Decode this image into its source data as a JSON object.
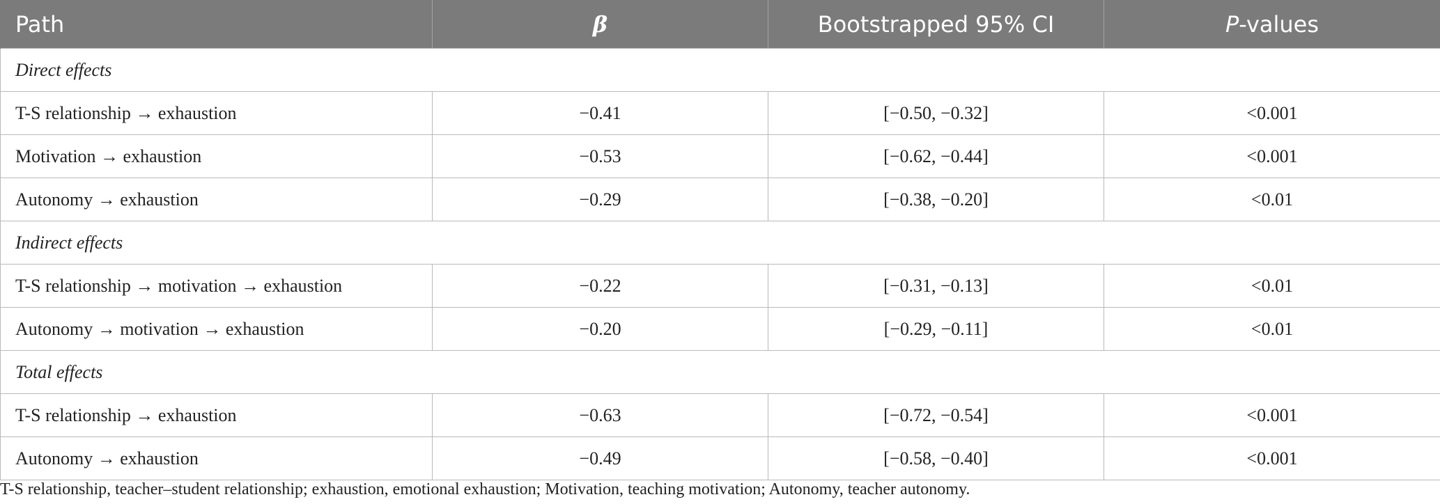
{
  "table": {
    "headers": {
      "path": "Path",
      "beta": "β",
      "ci": "Bootstrapped 95% CI",
      "p_italic": "P",
      "p_rest": "-values"
    },
    "sections": [
      {
        "title": "Direct effects",
        "rows": [
          {
            "path": "T-S relationship → exhaustion",
            "beta": "−0.41",
            "ci": "[−0.50, −0.32]",
            "p": "<0.001"
          },
          {
            "path": "Motivation → exhaustion",
            "beta": "−0.53",
            "ci": "[−0.62, −0.44]",
            "p": "<0.001"
          },
          {
            "path": "Autonomy → exhaustion",
            "beta": "−0.29",
            "ci": "[−0.38, −0.20]",
            "p": "<0.01"
          }
        ]
      },
      {
        "title": "Indirect effects",
        "rows": [
          {
            "path": "T-S relationship → motivation → exhaustion",
            "beta": "−0.22",
            "ci": "[−0.31, −0.13]",
            "p": "<0.01"
          },
          {
            "path": "Autonomy → motivation → exhaustion",
            "beta": "−0.20",
            "ci": "[−0.29, −0.11]",
            "p": "<0.01"
          }
        ]
      },
      {
        "title": "Total effects",
        "rows": [
          {
            "path": "T-S relationship → exhaustion",
            "beta": "−0.63",
            "ci": "[−0.72, −0.54]",
            "p": "<0.001"
          },
          {
            "path": "Autonomy → exhaustion",
            "beta": "−0.49",
            "ci": "[−0.58, −0.40]",
            "p": "<0.001"
          }
        ]
      }
    ]
  },
  "footnote": "T-S relationship, teacher–student relationship; exhaustion, emotional exhaustion; Motivation, teaching motivation; Autonomy, teacher autonomy.",
  "colors": {
    "header_bg": "#7b7b7b",
    "header_text": "#ffffff",
    "grid": "#b9b9b9",
    "body_text": "#222222"
  }
}
